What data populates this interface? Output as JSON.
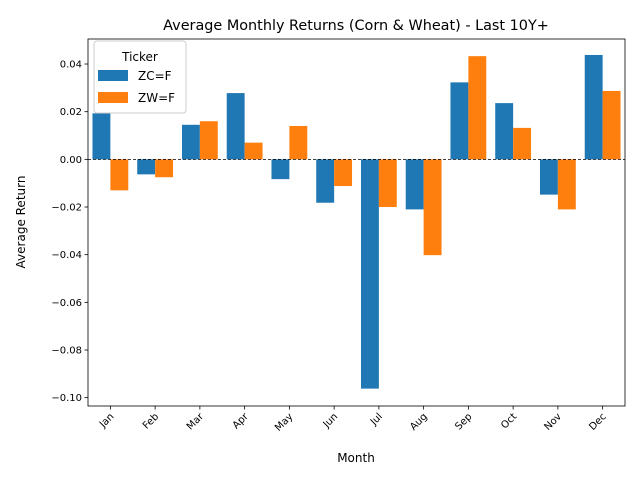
{
  "chart_data": {
    "type": "bar",
    "title": "Average Monthly Returns (Corn & Wheat) - Last 10Y+",
    "xlabel": "Month",
    "ylabel": "Average Return",
    "categories": [
      "Jan",
      "Feb",
      "Mar",
      "Apr",
      "May",
      "Jun",
      "Jul",
      "Aug",
      "Sep",
      "Oct",
      "Nov",
      "Dec"
    ],
    "series": [
      {
        "name": "ZC=F",
        "color": "#1f77b4",
        "values": [
          0.0193,
          -0.0063,
          0.0145,
          0.0278,
          -0.0083,
          -0.0182,
          -0.0962,
          -0.021,
          0.0323,
          0.0236,
          -0.0148,
          0.0438
        ]
      },
      {
        "name": "ZW=F",
        "color": "#ff7f0e",
        "values": [
          -0.013,
          -0.0075,
          0.016,
          0.007,
          0.014,
          -0.0112,
          -0.02,
          -0.0402,
          0.0433,
          0.0132,
          -0.021,
          0.0287
        ]
      }
    ],
    "ylim": [
      -0.1035,
      0.0505
    ],
    "yticks": [
      -0.1,
      -0.08,
      -0.06,
      -0.04,
      -0.02,
      0.0,
      0.02,
      0.04
    ],
    "ytick_labels": [
      "−0.10",
      "−0.08",
      "−0.06",
      "−0.04",
      "−0.02",
      "0.00",
      "0.02",
      "0.04"
    ],
    "zero_line": true,
    "grid": false,
    "legend": {
      "title": "Ticker",
      "position": "top-left"
    }
  }
}
